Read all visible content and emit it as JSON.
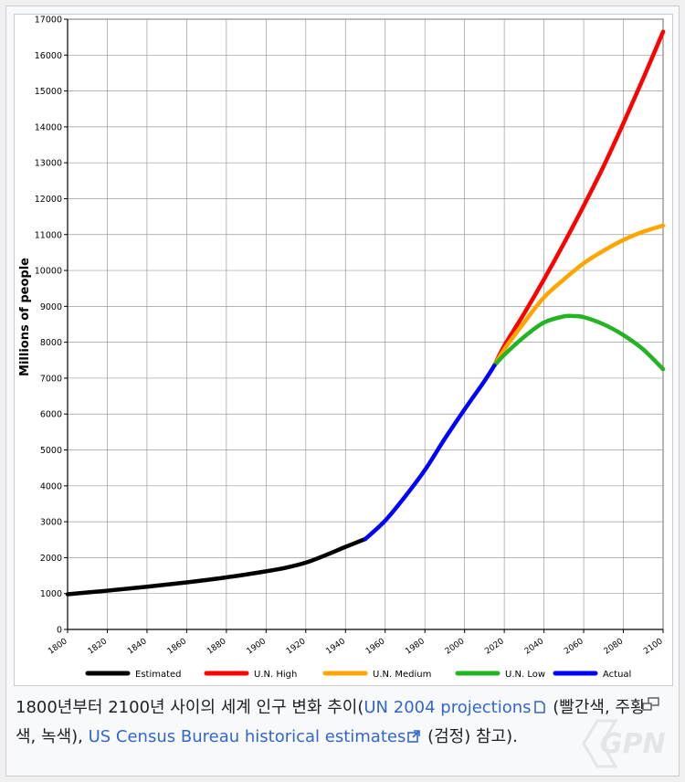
{
  "chart_data": {
    "type": "line",
    "ylabel": "Millions of people",
    "xlabel": "",
    "xlim": [
      1800,
      2100
    ],
    "ylim": [
      0,
      17000
    ],
    "x_ticks": [
      "1800",
      "1820",
      "1840",
      "1860",
      "1880",
      "1900",
      "1920",
      "1940",
      "1960",
      "1980",
      "2000",
      "2020",
      "2040",
      "2060",
      "2080",
      "2100"
    ],
    "y_ticks": [
      "0",
      "1000",
      "2000",
      "3000",
      "4000",
      "5000",
      "6000",
      "7000",
      "8000",
      "9000",
      "10000",
      "11000",
      "12000",
      "13000",
      "14000",
      "15000",
      "16000",
      "17000"
    ],
    "grid": true,
    "legend_position": "bottom",
    "series": [
      {
        "name": "Estimated",
        "color": "#000000",
        "x": [
          1800,
          1820,
          1840,
          1860,
          1880,
          1900,
          1910,
          1920,
          1930,
          1940,
          1950
        ],
        "y": [
          980,
          1080,
          1190,
          1310,
          1450,
          1620,
          1720,
          1860,
          2070,
          2300,
          2520
        ]
      },
      {
        "name": "U.N. High",
        "color": "#ff0000",
        "x": [
          2015,
          2020,
          2030,
          2040,
          2050,
          2060,
          2070,
          2080,
          2090,
          2100
        ],
        "y": [
          7350,
          7900,
          8800,
          9750,
          10750,
          11800,
          12900,
          14100,
          15350,
          16650
        ]
      },
      {
        "name": "U.N. Medium",
        "color": "#ffa500",
        "x": [
          2015,
          2020,
          2030,
          2040,
          2050,
          2060,
          2070,
          2080,
          2090,
          2100
        ],
        "y": [
          7350,
          7800,
          8550,
          9250,
          9750,
          10200,
          10550,
          10850,
          11080,
          11250
        ]
      },
      {
        "name": "U.N. Low",
        "color": "#22b422",
        "x": [
          2015,
          2020,
          2030,
          2040,
          2050,
          2055,
          2060,
          2070,
          2080,
          2090,
          2100
        ],
        "y": [
          7350,
          7650,
          8150,
          8550,
          8720,
          8730,
          8700,
          8500,
          8200,
          7800,
          7250
        ]
      },
      {
        "name": "Actual",
        "color": "#0000ff",
        "x": [
          1950,
          1960,
          1970,
          1980,
          1990,
          2000,
          2010,
          2015
        ],
        "y": [
          2520,
          3030,
          3700,
          4440,
          5310,
          6130,
          6920,
          7350
        ]
      }
    ]
  },
  "caption": {
    "text_1": "1800년부터 2100년 사이의 세계 인구 변화 추이(",
    "link_1": "UN 2004 projections",
    "text_2": " (빨간색, 주황색, 녹색), ",
    "link_2": "US Census Bureau historical estimates",
    "text_3": " (검정) 참고)."
  },
  "watermark": "GPN",
  "colors": {
    "link": "#3366cc",
    "frame": "#c8ccd1"
  },
  "icons": {
    "enlarge": "enlarge-icon",
    "file_link": "file-icon",
    "external_link": "external-link-icon"
  }
}
